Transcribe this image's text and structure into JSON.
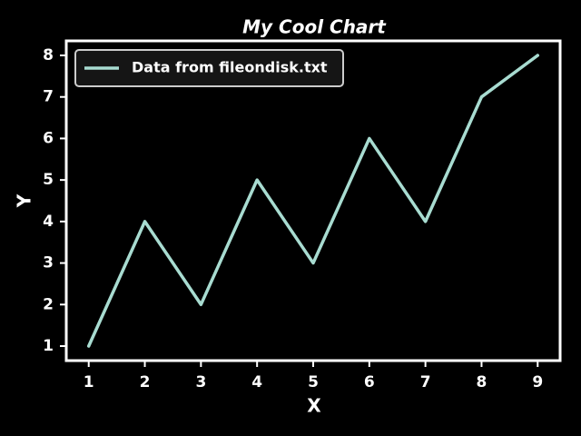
{
  "chart_data": {
    "type": "line",
    "title": "My Cool Chart",
    "x_label": "X",
    "y_label": "Y",
    "x": [
      1,
      2,
      3,
      4,
      5,
      6,
      7,
      8,
      9
    ],
    "series": [
      {
        "name": "Data from fileondisk.txt",
        "color": "#a8dcd1",
        "values": [
          1,
          4,
          2,
          5,
          3,
          6,
          4,
          7,
          8
        ]
      }
    ],
    "xlim": [
      0.6,
      9.4
    ],
    "xticks": [
      1,
      2,
      3,
      4,
      5,
      6,
      7,
      8,
      9
    ],
    "ylim": [
      0.65,
      8.35
    ],
    "yticks": [
      1,
      2,
      3,
      4,
      5,
      6,
      7,
      8
    ],
    "grid": false,
    "legend": "upper left"
  }
}
